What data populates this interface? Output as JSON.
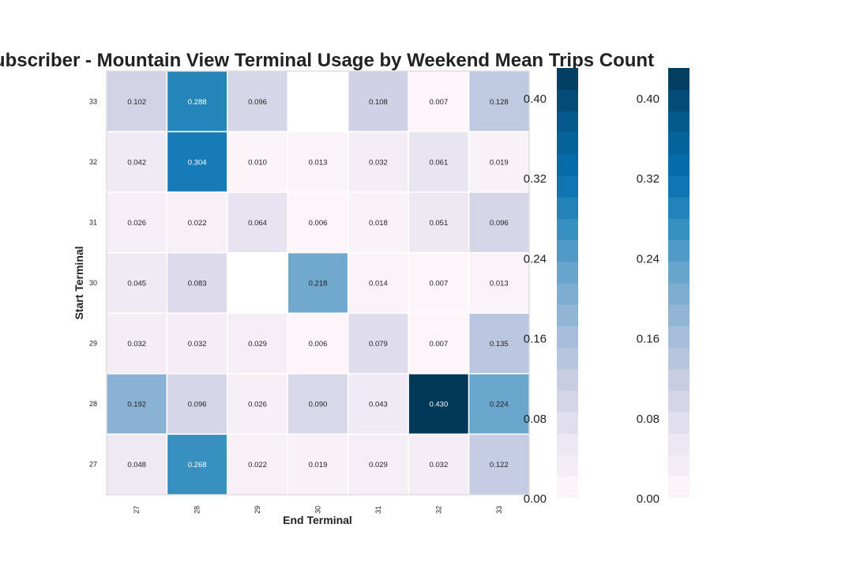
{
  "chart_data": {
    "type": "heatmap",
    "title": "Subscriber - Mountain View Terminal Usage by Weekend Mean Trips Count",
    "xlabel": "End Terminal",
    "ylabel": "Start Terminal",
    "x_categories": [
      "27",
      "28",
      "29",
      "30",
      "31",
      "32",
      "33"
    ],
    "y_categories": [
      "33",
      "32",
      "31",
      "30",
      "29",
      "28",
      "27"
    ],
    "values": [
      [
        0.102,
        0.288,
        0.096,
        null,
        0.108,
        0.007,
        0.128
      ],
      [
        0.042,
        0.304,
        0.01,
        0.013,
        0.032,
        0.061,
        0.019
      ],
      [
        0.026,
        0.022,
        0.064,
        0.006,
        0.018,
        0.051,
        0.096
      ],
      [
        0.045,
        0.083,
        null,
        0.218,
        0.014,
        0.007,
        0.013
      ],
      [
        0.032,
        0.032,
        0.029,
        0.006,
        0.079,
        0.007,
        0.135
      ],
      [
        0.192,
        0.096,
        0.026,
        0.09,
        0.043,
        0.43,
        0.224
      ],
      [
        0.048,
        0.268,
        0.022,
        0.019,
        0.029,
        0.032,
        0.122
      ]
    ],
    "colormap": "PuBu",
    "vmin": 0.0,
    "vmax": 0.43,
    "colorbar_ticks": [
      "0.00",
      "0.08",
      "0.16",
      "0.24",
      "0.32",
      "0.40"
    ],
    "colorbar_count": 2,
    "annotations": true,
    "grid": false
  }
}
